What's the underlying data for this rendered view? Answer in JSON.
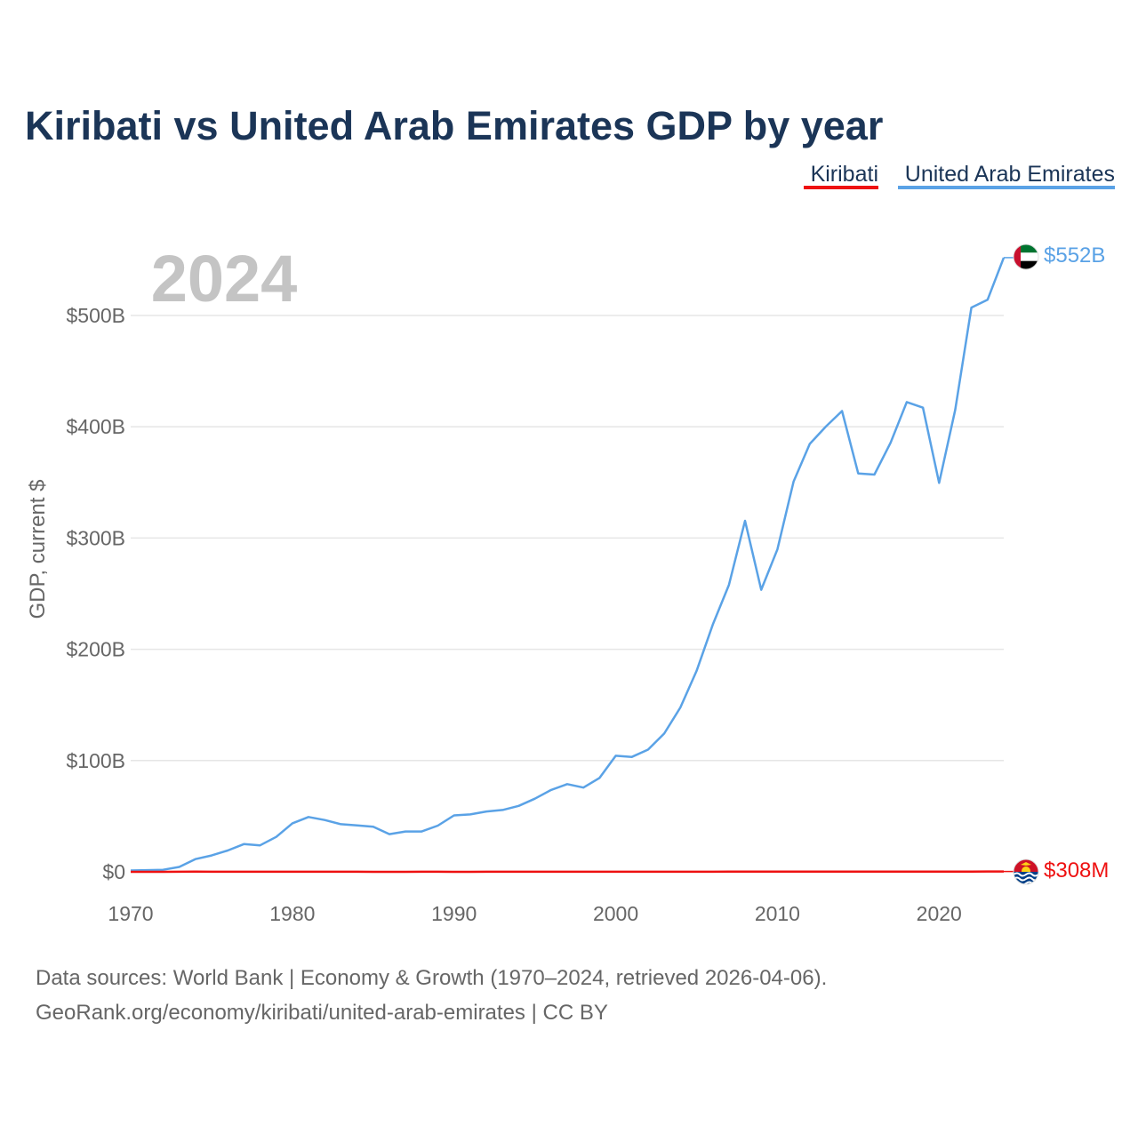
{
  "chart_data": {
    "type": "line",
    "title": "Kiribati vs United Arab Emirates GDP by year",
    "year_label": "2024",
    "ylabel": "GDP, current $",
    "xlabel": "",
    "xlim": [
      1970,
      2024
    ],
    "ylim": [
      0,
      552
    ],
    "y_unit": "billions of current US$",
    "x_ticks": [
      1970,
      1980,
      1990,
      2000,
      2010,
      2020
    ],
    "y_ticks": [
      {
        "value": 0,
        "label": "$0"
      },
      {
        "value": 100,
        "label": "$100B"
      },
      {
        "value": 200,
        "label": "$200B"
      },
      {
        "value": 300,
        "label": "$300B"
      },
      {
        "value": 400,
        "label": "$400B"
      },
      {
        "value": 500,
        "label": "$500B"
      }
    ],
    "grid": true,
    "legend_position": "top-right",
    "colors": {
      "kiribati": "#ee1111",
      "uae": "#5aa2e6",
      "title": "#1b3557",
      "axis_text": "#666666",
      "year": "#c4c4c4",
      "grid": "#e6e6e6"
    },
    "series": [
      {
        "key": "kiribati",
        "name": "Kiribati",
        "color": "#ee1111",
        "end_label": "$308M",
        "flag": "kiribati-flag",
        "x": [
          1970,
          1971,
          1972,
          1973,
          1974,
          1975,
          1976,
          1977,
          1978,
          1979,
          1980,
          1981,
          1982,
          1983,
          1984,
          1985,
          1986,
          1987,
          1988,
          1989,
          1990,
          1991,
          1992,
          1993,
          1994,
          1995,
          1996,
          1997,
          1998,
          1999,
          2000,
          2001,
          2002,
          2003,
          2004,
          2005,
          2006,
          2007,
          2008,
          2009,
          2010,
          2011,
          2012,
          2013,
          2014,
          2015,
          2016,
          2017,
          2018,
          2019,
          2020,
          2021,
          2022,
          2023,
          2024
        ],
        "values": [
          0.014,
          0.013,
          0.016,
          0.04,
          0.12,
          0.07,
          0.04,
          0.04,
          0.05,
          0.05,
          0.04,
          0.04,
          0.04,
          0.04,
          0.04,
          0.03,
          0.03,
          0.03,
          0.04,
          0.04,
          0.03,
          0.03,
          0.04,
          0.04,
          0.05,
          0.05,
          0.06,
          0.06,
          0.06,
          0.07,
          0.07,
          0.06,
          0.07,
          0.09,
          0.1,
          0.11,
          0.11,
          0.13,
          0.14,
          0.13,
          0.16,
          0.19,
          0.19,
          0.18,
          0.17,
          0.16,
          0.19,
          0.2,
          0.2,
          0.19,
          0.2,
          0.23,
          0.24,
          0.28,
          0.308
        ]
      },
      {
        "key": "uae",
        "name": "United Arab Emirates",
        "color": "#5aa2e6",
        "end_label": "$552B",
        "flag": "uae-flag",
        "x": [
          1970,
          1971,
          1972,
          1973,
          1974,
          1975,
          1976,
          1977,
          1978,
          1979,
          1980,
          1981,
          1982,
          1983,
          1984,
          1985,
          1986,
          1987,
          1988,
          1989,
          1990,
          1991,
          1992,
          1993,
          1994,
          1995,
          1996,
          1997,
          1998,
          1999,
          2000,
          2001,
          2002,
          2003,
          2004,
          2005,
          2006,
          2007,
          2008,
          2009,
          2010,
          2011,
          2012,
          2013,
          2014,
          2015,
          2016,
          2017,
          2018,
          2019,
          2020,
          2021,
          2022,
          2023,
          2024
        ],
        "values": [
          1.2,
          1.5,
          1.8,
          4.4,
          11.4,
          14.7,
          19.2,
          24.9,
          23.8,
          31.4,
          43.6,
          49.3,
          46.6,
          42.8,
          41.8,
          40.6,
          33.9,
          36.3,
          36.3,
          41.5,
          50.7,
          51.6,
          54.2,
          55.6,
          59.3,
          65.7,
          73.6,
          78.8,
          75.7,
          84.4,
          104.3,
          103.3,
          109.8,
          124.3,
          147.8,
          180.6,
          222.1,
          257.9,
          315.5,
          253.5,
          289.8,
          350.7,
          384.6,
          400.2,
          414.1,
          358.1,
          357.0,
          385.6,
          422.2,
          417.2,
          349.5,
          415.2,
          507.1,
          514.1,
          552.0
        ]
      }
    ],
    "footer": {
      "line1": "Data sources: World Bank | Economy & Growth (1970–2024, retrieved 2026-04-06).",
      "line2": "GeoRank.org/economy/kiribati/united-arab-emirates | CC BY"
    }
  }
}
